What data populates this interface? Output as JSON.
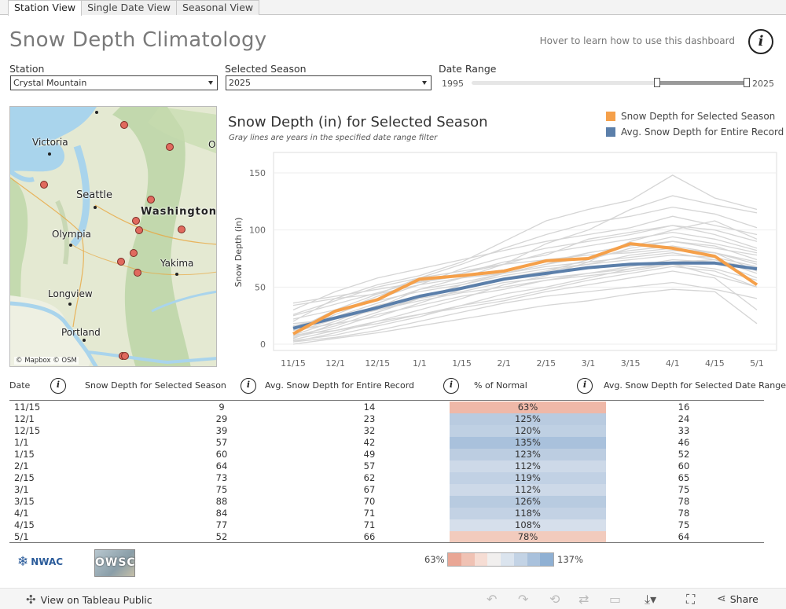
{
  "tabs": [
    "Station View",
    "Single Date View",
    "Seasonal View"
  ],
  "title": "Snow Depth Climatology",
  "help_text": "Hover to learn how to use this dashboard",
  "info_glyph": "i",
  "filters": {
    "station_label": "Station",
    "station_value": "Crystal Mountain",
    "season_label": "Selected Season",
    "season_value": "2025",
    "range_label": "Date Range",
    "range_start": "1995",
    "range_end": "2025"
  },
  "map": {
    "labels": {
      "victoria": "Victoria",
      "seattle": "Seattle",
      "washington": "Washington",
      "olympia": "Olympia",
      "yakima": "Yakima",
      "longview": "Longview",
      "portland": "Portland",
      "o": "O"
    },
    "credit": "© Mapbox © OSM",
    "station_color": "#e06a5e"
  },
  "chart_data": {
    "type": "line",
    "title": "Snow Depth (in) for Selected Season",
    "subtitle": "Gray lines are years in the specified date range filter",
    "ylabel": "Snow Depth (in)",
    "ylim": [
      0,
      150
    ],
    "yticks": [
      0,
      50,
      100,
      150
    ],
    "categories": [
      "11/15",
      "12/1",
      "12/15",
      "1/1",
      "1/15",
      "2/1",
      "2/15",
      "3/1",
      "3/15",
      "4/1",
      "4/15",
      "5/1"
    ],
    "series": [
      {
        "name": "Snow Depth for Selected Season",
        "color": "#f5a04a",
        "values": [
          9,
          29,
          39,
          57,
          60,
          64,
          73,
          75,
          88,
          84,
          77,
          52
        ]
      },
      {
        "name": "Avg. Snow Depth for Entire Record",
        "color": "#5b7faa",
        "values": [
          14,
          23,
          32,
          42,
          49,
          57,
          62,
          67,
          70,
          71,
          71,
          66
        ]
      }
    ],
    "background_years_color": "#d5d5d5",
    "background_years": [
      [
        5,
        18,
        32,
        48,
        58,
        70,
        88,
        100,
        118,
        130,
        122,
        115
      ],
      [
        2,
        10,
        20,
        30,
        40,
        52,
        60,
        72,
        90,
        100,
        108,
        92
      ],
      [
        20,
        40,
        52,
        60,
        72,
        90,
        108,
        118,
        126,
        148,
        128,
        118
      ],
      [
        10,
        22,
        30,
        38,
        45,
        50,
        56,
        62,
        66,
        70,
        60,
        50
      ],
      [
        36,
        42,
        48,
        54,
        60,
        65,
        72,
        80,
        86,
        90,
        84,
        78
      ],
      [
        4,
        12,
        20,
        26,
        32,
        38,
        46,
        52,
        58,
        64,
        58,
        30
      ],
      [
        14,
        28,
        42,
        55,
        62,
        72,
        78,
        92,
        98,
        104,
        96,
        84
      ],
      [
        0,
        5,
        10,
        16,
        22,
        28,
        34,
        38,
        44,
        48,
        46,
        18
      ],
      [
        8,
        20,
        34,
        42,
        50,
        58,
        64,
        70,
        78,
        82,
        80,
        72
      ],
      [
        25,
        35,
        45,
        55,
        62,
        70,
        80,
        86,
        92,
        98,
        92,
        82
      ],
      [
        12,
        18,
        24,
        36,
        48,
        56,
        64,
        74,
        84,
        90,
        86,
        74
      ],
      [
        30,
        46,
        58,
        66,
        74,
        82,
        90,
        96,
        102,
        112,
        104,
        96
      ],
      [
        6,
        14,
        26,
        34,
        42,
        48,
        56,
        60,
        64,
        70,
        66,
        56
      ],
      [
        16,
        24,
        36,
        48,
        54,
        62,
        70,
        76,
        82,
        86,
        80,
        64
      ],
      [
        3,
        8,
        16,
        24,
        34,
        44,
        50,
        58,
        66,
        72,
        74,
        62
      ],
      [
        22,
        30,
        38,
        46,
        52,
        60,
        66,
        70,
        74,
        78,
        76,
        68
      ],
      [
        10,
        26,
        40,
        52,
        66,
        76,
        84,
        90,
        96,
        104,
        100,
        90
      ],
      [
        18,
        22,
        30,
        40,
        46,
        54,
        58,
        62,
        68,
        74,
        72,
        58
      ],
      [
        7,
        16,
        28,
        40,
        52,
        62,
        70,
        80,
        86,
        94,
        88,
        80
      ],
      [
        26,
        38,
        50,
        58,
        64,
        70,
        74,
        78,
        80,
        84,
        80,
        70
      ],
      [
        2,
        6,
        12,
        20,
        28,
        36,
        42,
        46,
        50,
        54,
        48,
        40
      ],
      [
        34,
        40,
        44,
        52,
        58,
        62,
        68,
        72,
        76,
        80,
        74,
        66
      ],
      [
        12,
        30,
        44,
        58,
        70,
        84,
        96,
        106,
        112,
        120,
        114,
        102
      ],
      [
        8,
        12,
        18,
        26,
        34,
        40,
        48,
        56,
        62,
        68,
        64,
        50
      ]
    ]
  },
  "table": {
    "headers": {
      "date": "Date",
      "selected": "Snow Depth for Selected Season",
      "avg": "Avg. Snow Depth for Entire Record",
      "pct": "% of Normal",
      "range_avg": "Avg. Snow Depth for Selected Date Range"
    },
    "rows": [
      {
        "date": "11/15",
        "selected": "9",
        "avg": "14",
        "pct": "63%",
        "range_avg": "16",
        "pct_color": "#efb8a8"
      },
      {
        "date": "12/1",
        "selected": "29",
        "avg": "23",
        "pct": "125%",
        "range_avg": "24",
        "pct_color": "#b9cbe0"
      },
      {
        "date": "12/15",
        "selected": "39",
        "avg": "32",
        "pct": "120%",
        "range_avg": "33",
        "pct_color": "#bfd0e3"
      },
      {
        "date": "1/1",
        "selected": "57",
        "avg": "42",
        "pct": "135%",
        "range_avg": "46",
        "pct_color": "#a9c1dc"
      },
      {
        "date": "1/15",
        "selected": "60",
        "avg": "49",
        "pct": "123%",
        "range_avg": "52",
        "pct_color": "#bccde1"
      },
      {
        "date": "2/1",
        "selected": "64",
        "avg": "57",
        "pct": "112%",
        "range_avg": "60",
        "pct_color": "#cdd9e8"
      },
      {
        "date": "2/15",
        "selected": "73",
        "avg": "62",
        "pct": "119%",
        "range_avg": "65",
        "pct_color": "#c1d1e4"
      },
      {
        "date": "3/1",
        "selected": "75",
        "avg": "67",
        "pct": "112%",
        "range_avg": "75",
        "pct_color": "#cdd9e8"
      },
      {
        "date": "3/15",
        "selected": "88",
        "avg": "70",
        "pct": "126%",
        "range_avg": "78",
        "pct_color": "#b8cbe0"
      },
      {
        "date": "4/1",
        "selected": "84",
        "avg": "71",
        "pct": "118%",
        "range_avg": "78",
        "pct_color": "#c3d2e4"
      },
      {
        "date": "4/15",
        "selected": "77",
        "avg": "71",
        "pct": "108%",
        "range_avg": "75",
        "pct_color": "#d6dfeb"
      },
      {
        "date": "5/1",
        "selected": "52",
        "avg": "66",
        "pct": "78%",
        "range_avg": "64",
        "pct_color": "#f2cbbd"
      }
    ]
  },
  "color_scale": {
    "min_label": "63%",
    "max_label": "137%",
    "colors": [
      "#e9a695",
      "#f0c2b4",
      "#f6ddd4",
      "#f1efee",
      "#dbe4ee",
      "#c3d3e5",
      "#a9c1dc",
      "#8fb0d3"
    ]
  },
  "logos": {
    "nwac": "NWAC",
    "owsc": "OWSC"
  },
  "footer": {
    "view_link": "View on Tableau Public",
    "share": "Share"
  }
}
